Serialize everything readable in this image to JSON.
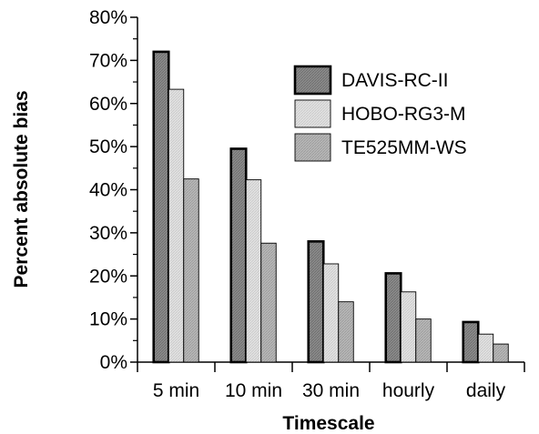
{
  "chart_data": {
    "type": "bar",
    "xlabel": "Timescale",
    "ylabel": "Percent absolute bias",
    "ylim": [
      0,
      80
    ],
    "y_tick_values": [
      0,
      10,
      20,
      30,
      40,
      50,
      60,
      70,
      80
    ],
    "y_tick_labels": [
      "0%",
      "10%",
      "20%",
      "30%",
      "40%",
      "50%",
      "60%",
      "70%",
      "80%"
    ],
    "categories": [
      "5 min",
      "10 min",
      "30 min",
      "hourly",
      "daily"
    ],
    "series": [
      {
        "name": "DAVIS-RC-II",
        "values": [
          72,
          49.5,
          28,
          20.6,
          9.3
        ],
        "fill": "#9a9a9a",
        "pattern": "dark-hatch",
        "stroke_bold": true
      },
      {
        "name": "HOBO-RG3-M",
        "values": [
          63.3,
          42.3,
          22.8,
          16.3,
          6.5
        ],
        "fill": "#dcdcdc",
        "pattern": "light-hatch",
        "stroke_bold": false
      },
      {
        "name": "TE525MM-WS",
        "values": [
          42.5,
          27.6,
          14,
          10,
          4.2
        ],
        "fill": "#b4b4b4",
        "pattern": "mid-hatch",
        "stroke_bold": false
      }
    ],
    "legend_position": "top-right",
    "grid": false
  }
}
